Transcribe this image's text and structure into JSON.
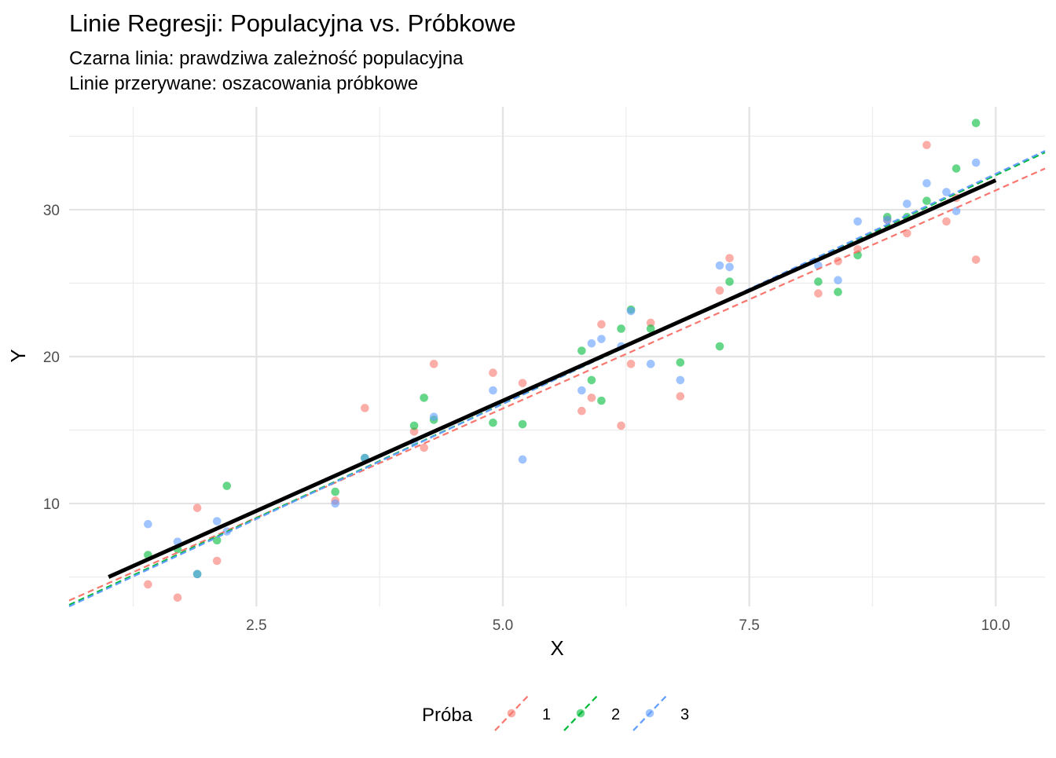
{
  "chart_data": {
    "type": "scatter",
    "title": "Linie Regresji: Populacyjna vs. Próbkowe",
    "subtitle_line1": "Czarna linia: prawdziwa zależność populacyjna",
    "subtitle_line2": "Linie przerywane: oszacowania próbkowe",
    "xlabel": "X",
    "ylabel": "Y",
    "xlim": [
      0.6,
      10.5
    ],
    "ylim": [
      3.0,
      37.0
    ],
    "x_ticks": [
      2.5,
      5.0,
      7.5,
      10.0
    ],
    "x_tick_labels": [
      "2.5",
      "5.0",
      "7.5",
      "10.0"
    ],
    "y_ticks": [
      10,
      20,
      30
    ],
    "y_tick_labels": [
      "10",
      "20",
      "30"
    ],
    "grid": true,
    "legend_position": "bottom",
    "legend_title": "Próba",
    "population_line": {
      "color": "#000000",
      "x": [
        1.0,
        10.0
      ],
      "y": [
        5.0,
        32.0
      ]
    },
    "series": [
      {
        "name": "1",
        "color": "#F8766D",
        "line": {
          "x": [
            0.6,
            10.5
          ],
          "y": [
            3.4,
            32.8
          ]
        },
        "points": [
          [
            1.4,
            4.5
          ],
          [
            1.7,
            3.6
          ],
          [
            1.9,
            9.7
          ],
          [
            2.1,
            6.1
          ],
          [
            3.3,
            10.2
          ],
          [
            3.6,
            16.5
          ],
          [
            4.1,
            14.9
          ],
          [
            4.2,
            13.8
          ],
          [
            4.3,
            19.5
          ],
          [
            4.9,
            18.9
          ],
          [
            5.2,
            18.2
          ],
          [
            5.8,
            16.3
          ],
          [
            5.9,
            17.2
          ],
          [
            6.0,
            22.2
          ],
          [
            6.2,
            15.3
          ],
          [
            6.3,
            19.5
          ],
          [
            6.5,
            22.3
          ],
          [
            6.8,
            17.3
          ],
          [
            7.2,
            24.5
          ],
          [
            7.3,
            26.7
          ],
          [
            8.2,
            24.3
          ],
          [
            8.4,
            26.5
          ],
          [
            8.6,
            27.3
          ],
          [
            8.9,
            29.3
          ],
          [
            9.1,
            28.4
          ],
          [
            9.3,
            34.4
          ],
          [
            9.5,
            29.2
          ],
          [
            9.6,
            30.8
          ],
          [
            9.8,
            26.6
          ]
        ]
      },
      {
        "name": "2",
        "color": "#00BA38",
        "line": {
          "x": [
            0.6,
            10.5
          ],
          "y": [
            3.1,
            33.9
          ]
        },
        "points": [
          [
            1.4,
            6.5
          ],
          [
            1.7,
            6.9
          ],
          [
            1.9,
            5.2
          ],
          [
            2.1,
            7.5
          ],
          [
            2.2,
            11.2
          ],
          [
            3.3,
            10.8
          ],
          [
            3.6,
            13.1
          ],
          [
            4.1,
            15.3
          ],
          [
            4.2,
            17.2
          ],
          [
            4.3,
            15.7
          ],
          [
            4.9,
            15.5
          ],
          [
            5.2,
            15.4
          ],
          [
            5.8,
            20.4
          ],
          [
            5.9,
            18.4
          ],
          [
            6.0,
            17.0
          ],
          [
            6.2,
            21.9
          ],
          [
            6.3,
            23.2
          ],
          [
            6.5,
            21.9
          ],
          [
            6.8,
            19.6
          ],
          [
            7.2,
            20.7
          ],
          [
            7.3,
            25.1
          ],
          [
            8.2,
            25.1
          ],
          [
            8.4,
            24.4
          ],
          [
            8.6,
            26.9
          ],
          [
            8.9,
            29.5
          ],
          [
            9.1,
            29.5
          ],
          [
            9.3,
            30.6
          ],
          [
            9.6,
            32.8
          ],
          [
            9.8,
            35.9
          ]
        ]
      },
      {
        "name": "3",
        "color": "#619CFF",
        "line": {
          "x": [
            0.6,
            10.5
          ],
          "y": [
            3.0,
            34.0
          ]
        },
        "points": [
          [
            1.4,
            8.6
          ],
          [
            1.7,
            7.4
          ],
          [
            1.9,
            5.2
          ],
          [
            2.1,
            8.8
          ],
          [
            2.2,
            8.1
          ],
          [
            3.3,
            10.0
          ],
          [
            3.6,
            13.1
          ],
          [
            4.1,
            14.2
          ],
          [
            4.3,
            15.9
          ],
          [
            4.9,
            17.7
          ],
          [
            5.2,
            13.0
          ],
          [
            5.8,
            17.7
          ],
          [
            5.9,
            20.9
          ],
          [
            6.0,
            21.2
          ],
          [
            6.2,
            20.7
          ],
          [
            6.3,
            23.1
          ],
          [
            6.5,
            19.5
          ],
          [
            6.8,
            18.4
          ],
          [
            7.2,
            26.2
          ],
          [
            7.3,
            26.1
          ],
          [
            8.2,
            26.2
          ],
          [
            8.4,
            25.2
          ],
          [
            8.6,
            29.2
          ],
          [
            8.9,
            29.3
          ],
          [
            9.1,
            30.4
          ],
          [
            9.3,
            31.8
          ],
          [
            9.5,
            31.2
          ],
          [
            9.6,
            29.9
          ],
          [
            9.8,
            33.2
          ]
        ]
      }
    ]
  }
}
